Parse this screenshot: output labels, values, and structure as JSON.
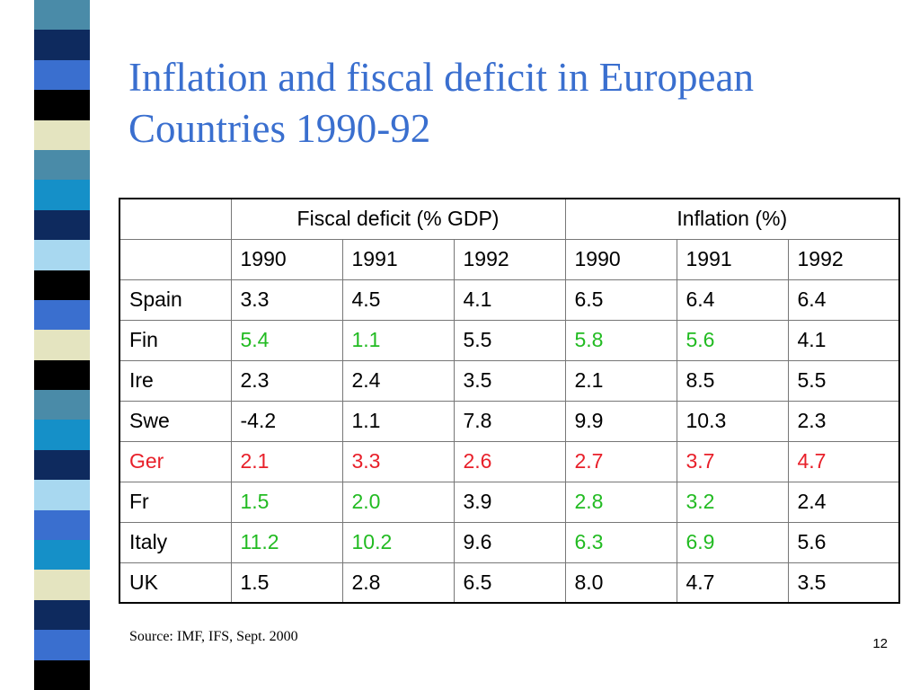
{
  "slide": {
    "title": "Inflation and fiscal deficit in European Countries 1990-92",
    "source": "Source: IMF, IFS, Sept. 2000",
    "page_number": "12"
  },
  "colors": {
    "title": "#3a6fcf",
    "normal": "#000000",
    "highlight_green": "#22bb22",
    "highlight_red": "#e8202a"
  },
  "stripe_colors": [
    "#4a8ba8",
    "#0e2a5e",
    "#3a6fcf",
    "#000000",
    "#e4e4c0",
    "#4a8ba8",
    "#1590c8",
    "#0e2a5e",
    "#a8d8f0",
    "#000000",
    "#3a6fcf",
    "#e4e4c0",
    "#000000",
    "#4a8ba8",
    "#1590c8",
    "#0e2a5e",
    "#a8d8f0",
    "#3a6fcf",
    "#1590c8",
    "#e4e4c0",
    "#0e2a5e",
    "#3a6fcf",
    "#000000"
  ],
  "table": {
    "groups": [
      "Fiscal deficit (% GDP)",
      "Inflation (%)"
    ],
    "years": [
      "1990",
      "1991",
      "1992",
      "1990",
      "1991",
      "1992"
    ],
    "rows": [
      {
        "country": "Spain",
        "country_color": "normal",
        "cells": [
          {
            "v": "3.3",
            "c": "normal"
          },
          {
            "v": "4.5",
            "c": "normal"
          },
          {
            "v": "4.1",
            "c": "normal"
          },
          {
            "v": "6.5",
            "c": "normal"
          },
          {
            "v": "6.4",
            "c": "normal"
          },
          {
            "v": "6.4",
            "c": "normal"
          }
        ]
      },
      {
        "country": "Fin",
        "country_color": "normal",
        "cells": [
          {
            "v": "5.4",
            "c": "highlight_green"
          },
          {
            "v": "1.1",
            "c": "highlight_green"
          },
          {
            "v": "5.5",
            "c": "normal"
          },
          {
            "v": "5.8",
            "c": "highlight_green"
          },
          {
            "v": "5.6",
            "c": "highlight_green"
          },
          {
            "v": "4.1",
            "c": "normal"
          }
        ]
      },
      {
        "country": "Ire",
        "country_color": "normal",
        "cells": [
          {
            "v": "2.3",
            "c": "normal"
          },
          {
            "v": "2.4",
            "c": "normal"
          },
          {
            "v": "3.5",
            "c": "normal"
          },
          {
            "v": "2.1",
            "c": "normal"
          },
          {
            "v": "8.5",
            "c": "normal"
          },
          {
            "v": "5.5",
            "c": "normal"
          }
        ]
      },
      {
        "country": "Swe",
        "country_color": "normal",
        "cells": [
          {
            "v": "-4.2",
            "c": "normal"
          },
          {
            "v": "1.1",
            "c": "normal"
          },
          {
            "v": "7.8",
            "c": "normal"
          },
          {
            "v": "9.9",
            "c": "normal"
          },
          {
            "v": "10.3",
            "c": "normal"
          },
          {
            "v": "2.3",
            "c": "normal"
          }
        ]
      },
      {
        "country": "Ger",
        "country_color": "highlight_red",
        "cells": [
          {
            "v": "2.1",
            "c": "highlight_red"
          },
          {
            "v": "3.3",
            "c": "highlight_red"
          },
          {
            "v": "2.6",
            "c": "highlight_red"
          },
          {
            "v": "2.7",
            "c": "highlight_red"
          },
          {
            "v": "3.7",
            "c": "highlight_red"
          },
          {
            "v": "4.7",
            "c": "highlight_red"
          }
        ]
      },
      {
        "country": "Fr",
        "country_color": "normal",
        "cells": [
          {
            "v": "1.5",
            "c": "highlight_green"
          },
          {
            "v": "2.0",
            "c": "highlight_green"
          },
          {
            "v": "3.9",
            "c": "normal"
          },
          {
            "v": "2.8",
            "c": "highlight_green"
          },
          {
            "v": "3.2",
            "c": "highlight_green"
          },
          {
            "v": "2.4",
            "c": "normal"
          }
        ]
      },
      {
        "country": "Italy",
        "country_color": "normal",
        "cells": [
          {
            "v": "11.2",
            "c": "highlight_green"
          },
          {
            "v": "10.2",
            "c": "highlight_green"
          },
          {
            "v": "9.6",
            "c": "normal"
          },
          {
            "v": "6.3",
            "c": "highlight_green"
          },
          {
            "v": "6.9",
            "c": "highlight_green"
          },
          {
            "v": "5.6",
            "c": "normal"
          }
        ]
      },
      {
        "country": "UK",
        "country_color": "normal",
        "cells": [
          {
            "v": "1.5",
            "c": "normal"
          },
          {
            "v": "2.8",
            "c": "normal"
          },
          {
            "v": "6.5",
            "c": "normal"
          },
          {
            "v": "8.0",
            "c": "normal"
          },
          {
            "v": "4.7",
            "c": "normal"
          },
          {
            "v": "3.5",
            "c": "normal"
          }
        ]
      }
    ]
  }
}
